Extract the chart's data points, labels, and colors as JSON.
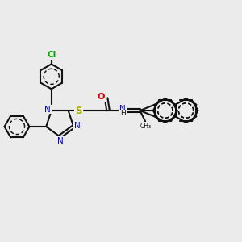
{
  "bg_color": "#ebebeb",
  "bond_color": "#111111",
  "N_color": "#0000ee",
  "O_color": "#dd0000",
  "S_color": "#aaaa00",
  "Cl_color": "#00aa00",
  "bond_lw": 1.5,
  "figsize": [
    3.0,
    3.0
  ],
  "dpi": 100,
  "xlim": [
    0,
    10
  ],
  "ylim": [
    0,
    10
  ]
}
